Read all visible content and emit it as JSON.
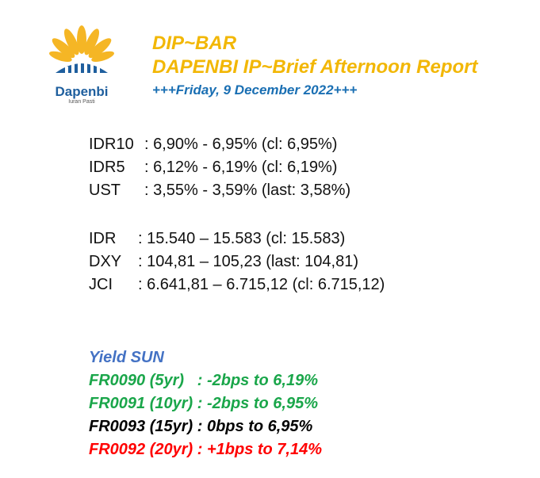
{
  "logo": {
    "name": "Dapenbi",
    "tagline": "Iuran Pasti",
    "colors": {
      "petal": "#f5b31a",
      "bars": "#1f5f9e"
    }
  },
  "header": {
    "title": "DIP~BAR",
    "subtitle": "DAPENBI IP~Brief Afternoon Report",
    "date": "+++Friday, 9 December 2022+++"
  },
  "rates": [
    {
      "label": "IDR10",
      "value": ": 6,90% - 6,95% (cl: 6,95%)"
    },
    {
      "label": "IDR5",
      "value": ": 6,12% - 6,19% (cl: 6,19%)"
    },
    {
      "label": "UST",
      "value": ": 3,55% - 3,59% (last: 3,58%)"
    }
  ],
  "markets": [
    {
      "label": "IDR",
      "value": ": 15.540 – 15.583 (cl: 15.583)"
    },
    {
      "label": "DXY",
      "value": ": 104,81 – 105,23 (last: 104,81)"
    },
    {
      "label": "JCI",
      "value": ": 6.641,81 – 6.715,12 (cl: 6.715,12)"
    }
  ],
  "yield_sun": {
    "title": "Yield SUN",
    "rows": [
      {
        "text": "FR0090 (5yr)   : -2bps to 6,19%",
        "color": "#1aa64a"
      },
      {
        "text": "FR0091 (10yr) : -2bps to 6,95%",
        "color": "#1aa64a"
      },
      {
        "text": "FR0093 (15yr) : 0bps to 6,95%",
        "color": "#000000"
      },
      {
        "text": "FR0092 (20yr) : +1bps to 7,14%",
        "color": "#ff0000"
      }
    ]
  }
}
